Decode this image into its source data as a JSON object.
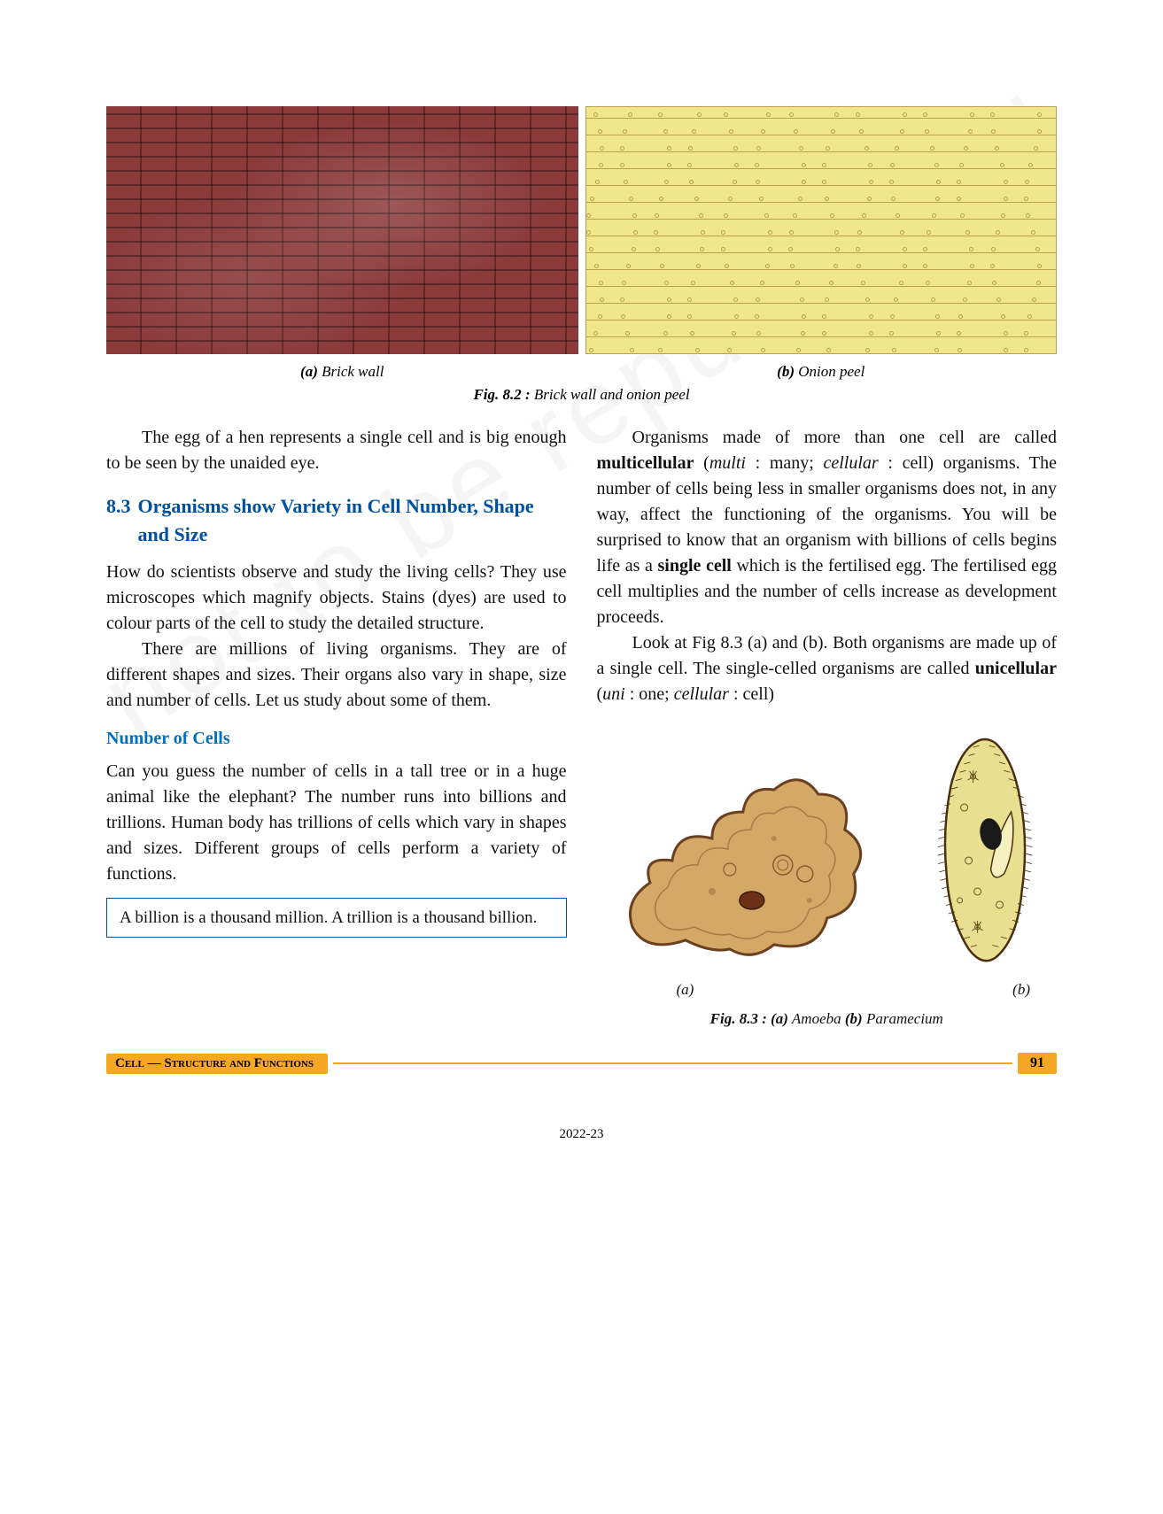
{
  "figure82": {
    "label_a_prefix": "(a)",
    "label_a": " Brick wall",
    "label_b_prefix": "(b)",
    "label_b": " Onion peel",
    "caption_prefix": "Fig. 8.2 :",
    "caption": " Brick wall and onion peel",
    "brick_color": "#8b3a3a",
    "onion_color": "#f0e68c",
    "onion_line_color": "#b8a050"
  },
  "left_col": {
    "p1": "The egg of a hen represents a single cell and is big enough to be seen by the unaided eye.",
    "heading_num": "8.3",
    "heading_text": "Organisms show Variety in Cell Number, Shape and Size",
    "p2": "How do scientists observe and study the living cells? They use microscopes which magnify objects. Stains (dyes) are used to colour parts of the cell to study the detailed structure.",
    "p3": "There are millions of living organisms. They are of different shapes and sizes. Their organs also vary in shape, size and number of cells. Let us study about some of them.",
    "sub_heading": "Number of Cells",
    "p4": "Can you guess the number of cells in a tall tree or in a huge animal like the elephant? The number runs into billions and trillions. Human body has trillions of cells which vary in shapes and sizes. Different groups of cells perform a variety of functions.",
    "info": "A billion is a thousand million. A trillion is a thousand billion."
  },
  "right_col": {
    "p1_a": "Organisms made of more than one cell are called ",
    "p1_b_bold": "multicellular",
    "p1_c": " (",
    "p1_d_italic": "multi",
    "p1_e": " : many; ",
    "p1_f_italic": "cellular",
    "p1_g": " : cell) organisms. The number of cells being less in smaller organisms does not, in any way, affect the functioning of the organisms. You will be surprised to know that an organism with billions of cells begins life as a ",
    "p1_h_bold": "single cell",
    "p1_i": " which is the fertilised egg. The fertilised egg cell multiplies and the number of cells increase as development proceeds.",
    "p2_a": "Look at Fig 8.3 (a) and (b). Both organisms are made up of a single cell. The single-celled organisms are called ",
    "p2_b_bold": "unicellular",
    "p2_c": " (",
    "p2_d_italic": "uni",
    "p2_e": " : one; ",
    "p2_f_italic": "cellular",
    "p2_g": " : cell)"
  },
  "figure83": {
    "label_a": "(a)",
    "label_b": "(b)",
    "caption_prefix": "Fig. 8.3 : (a)",
    "caption_mid": " Amoeba ",
    "caption_prefix2": "(b)",
    "caption_end": " Paramecium",
    "amoeba_fill": "#d4a968",
    "amoeba_stroke": "#6b4020",
    "paramecium_fill": "#e8e090",
    "paramecium_stroke": "#4a3010"
  },
  "footer": {
    "title": "Cell — Structure and Functions",
    "page_number": "91",
    "bar_color": "#f5a623"
  },
  "year": "2022-23",
  "watermark": "not to be republished"
}
